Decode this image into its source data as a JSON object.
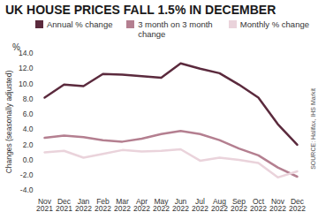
{
  "chart_data": {
    "type": "line",
    "title": "UK HOUSE PRICES FALL 1.5% IN DECEMBER",
    "ylabel": "Changes (seasonally adjusted)",
    "annotations": [
      {
        "text": "%"
      }
    ],
    "source": "SOURCE: Halifax, IHS Markit",
    "categories": [
      "Nov 2021",
      "Dec 2021",
      "Jan 2022",
      "Feb 2022",
      "Mar 2022",
      "Apr 2022",
      "May 2022",
      "Jun 2022",
      "Jul 2022",
      "Aug 2022",
      "Sep 2022",
      "Oct 2022",
      "Nov 2022",
      "Dec 2022"
    ],
    "series": [
      {
        "name": "Annual % change",
        "color": "#5b2a3d",
        "values": [
          8.2,
          9.9,
          9.7,
          11.3,
          11.2,
          11.0,
          10.8,
          12.7,
          12.0,
          11.4,
          9.9,
          8.2,
          4.7,
          2.0
        ]
      },
      {
        "name": "3 month on 3 month change",
        "color": "#b47f90",
        "values": [
          2.9,
          3.2,
          3.0,
          2.6,
          2.4,
          2.8,
          3.4,
          3.8,
          3.4,
          2.6,
          1.5,
          0.6,
          -1.0,
          -2.2
        ]
      },
      {
        "name": "Monthly % change",
        "color": "#ead3db",
        "values": [
          1.0,
          1.2,
          0.3,
          0.8,
          1.3,
          1.1,
          1.2,
          1.4,
          -0.1,
          0.3,
          0.0,
          -0.4,
          -2.3,
          -1.5
        ]
      }
    ],
    "ylim": [
      -4,
      14
    ],
    "yticks": [
      {
        "value": -4,
        "label": "-4.0"
      },
      {
        "value": -2,
        "label": "-2.0"
      },
      {
        "value": 0,
        "label": "0.0"
      },
      {
        "value": 2,
        "label": "2.0"
      },
      {
        "value": 4,
        "label": "4.0"
      },
      {
        "value": 6,
        "label": "6.0"
      },
      {
        "value": 8,
        "label": "8.0"
      },
      {
        "value": 10,
        "label": "10.0"
      },
      {
        "value": 12,
        "label": "12.0"
      },
      {
        "value": 14,
        "label": "14.0"
      }
    ],
    "grid": false,
    "legend": "top"
  }
}
